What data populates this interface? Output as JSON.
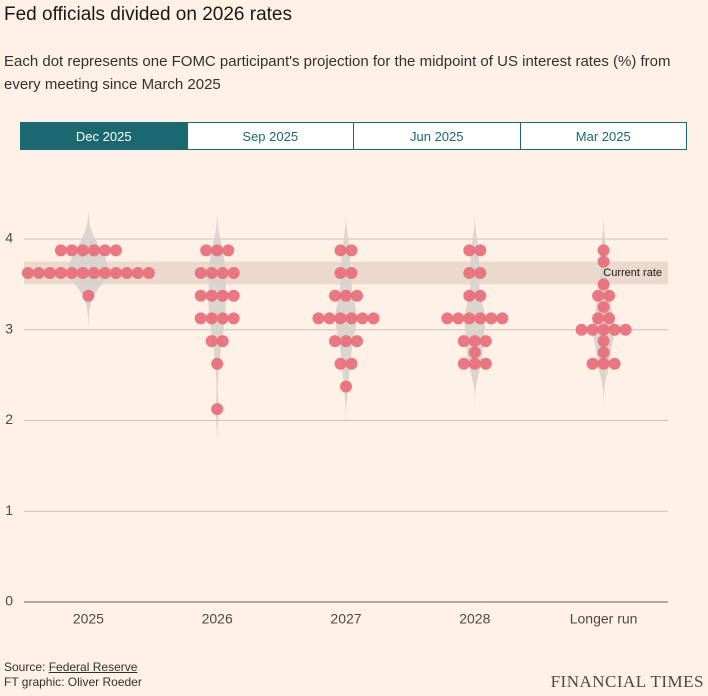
{
  "chart_data": {
    "type": "beeswarm",
    "title": "Fed officials divided on 2026 rates",
    "subtitle": "Each dot represents one FOMC participant's projection for the midpoint of US interest rates (%) from every meeting since March 2025",
    "tabs": [
      "Dec 2025",
      "Sep 2025",
      "Jun 2025",
      "Mar 2025"
    ],
    "selected_tab": "Dec 2025",
    "categories": [
      "2025",
      "2026",
      "2027",
      "2028",
      "Longer run"
    ],
    "values": [
      [
        3.875,
        3.875,
        3.875,
        3.875,
        3.875,
        3.875,
        3.625,
        3.625,
        3.625,
        3.625,
        3.625,
        3.625,
        3.625,
        3.625,
        3.625,
        3.625,
        3.625,
        3.625,
        3.375
      ],
      [
        3.875,
        3.875,
        3.875,
        3.625,
        3.625,
        3.625,
        3.625,
        3.375,
        3.375,
        3.375,
        3.375,
        3.125,
        3.125,
        3.125,
        3.125,
        2.875,
        2.875,
        2.625,
        2.125
      ],
      [
        3.875,
        3.875,
        3.625,
        3.625,
        3.375,
        3.375,
        3.375,
        3.125,
        3.125,
        3.125,
        3.125,
        3.125,
        3.125,
        2.875,
        2.875,
        2.875,
        2.625,
        2.625,
        2.375
      ],
      [
        3.875,
        3.875,
        3.625,
        3.625,
        3.375,
        3.375,
        3.125,
        3.125,
        3.125,
        3.125,
        3.125,
        3.125,
        2.875,
        2.875,
        2.875,
        2.75,
        2.625,
        2.625,
        2.625
      ],
      [
        3.875,
        3.75,
        3.5,
        3.375,
        3.375,
        3.25,
        3.125,
        3.125,
        3.0,
        3.0,
        3.0,
        3.0,
        3.0,
        2.875,
        2.75,
        2.625,
        2.625,
        2.625
      ]
    ],
    "color": "#e8717c",
    "current_rate": {
      "label": "Current rate",
      "range": [
        3.5,
        3.75
      ]
    },
    "ylim": [
      0,
      4.3
    ],
    "yticks": [
      0,
      1,
      2,
      3,
      4
    ],
    "grid": true,
    "source_prefix": "Source: ",
    "source": "Federal Reserve",
    "credit": "FT graphic: Oliver Roeder",
    "brand": "FINANCIAL TIMES"
  }
}
